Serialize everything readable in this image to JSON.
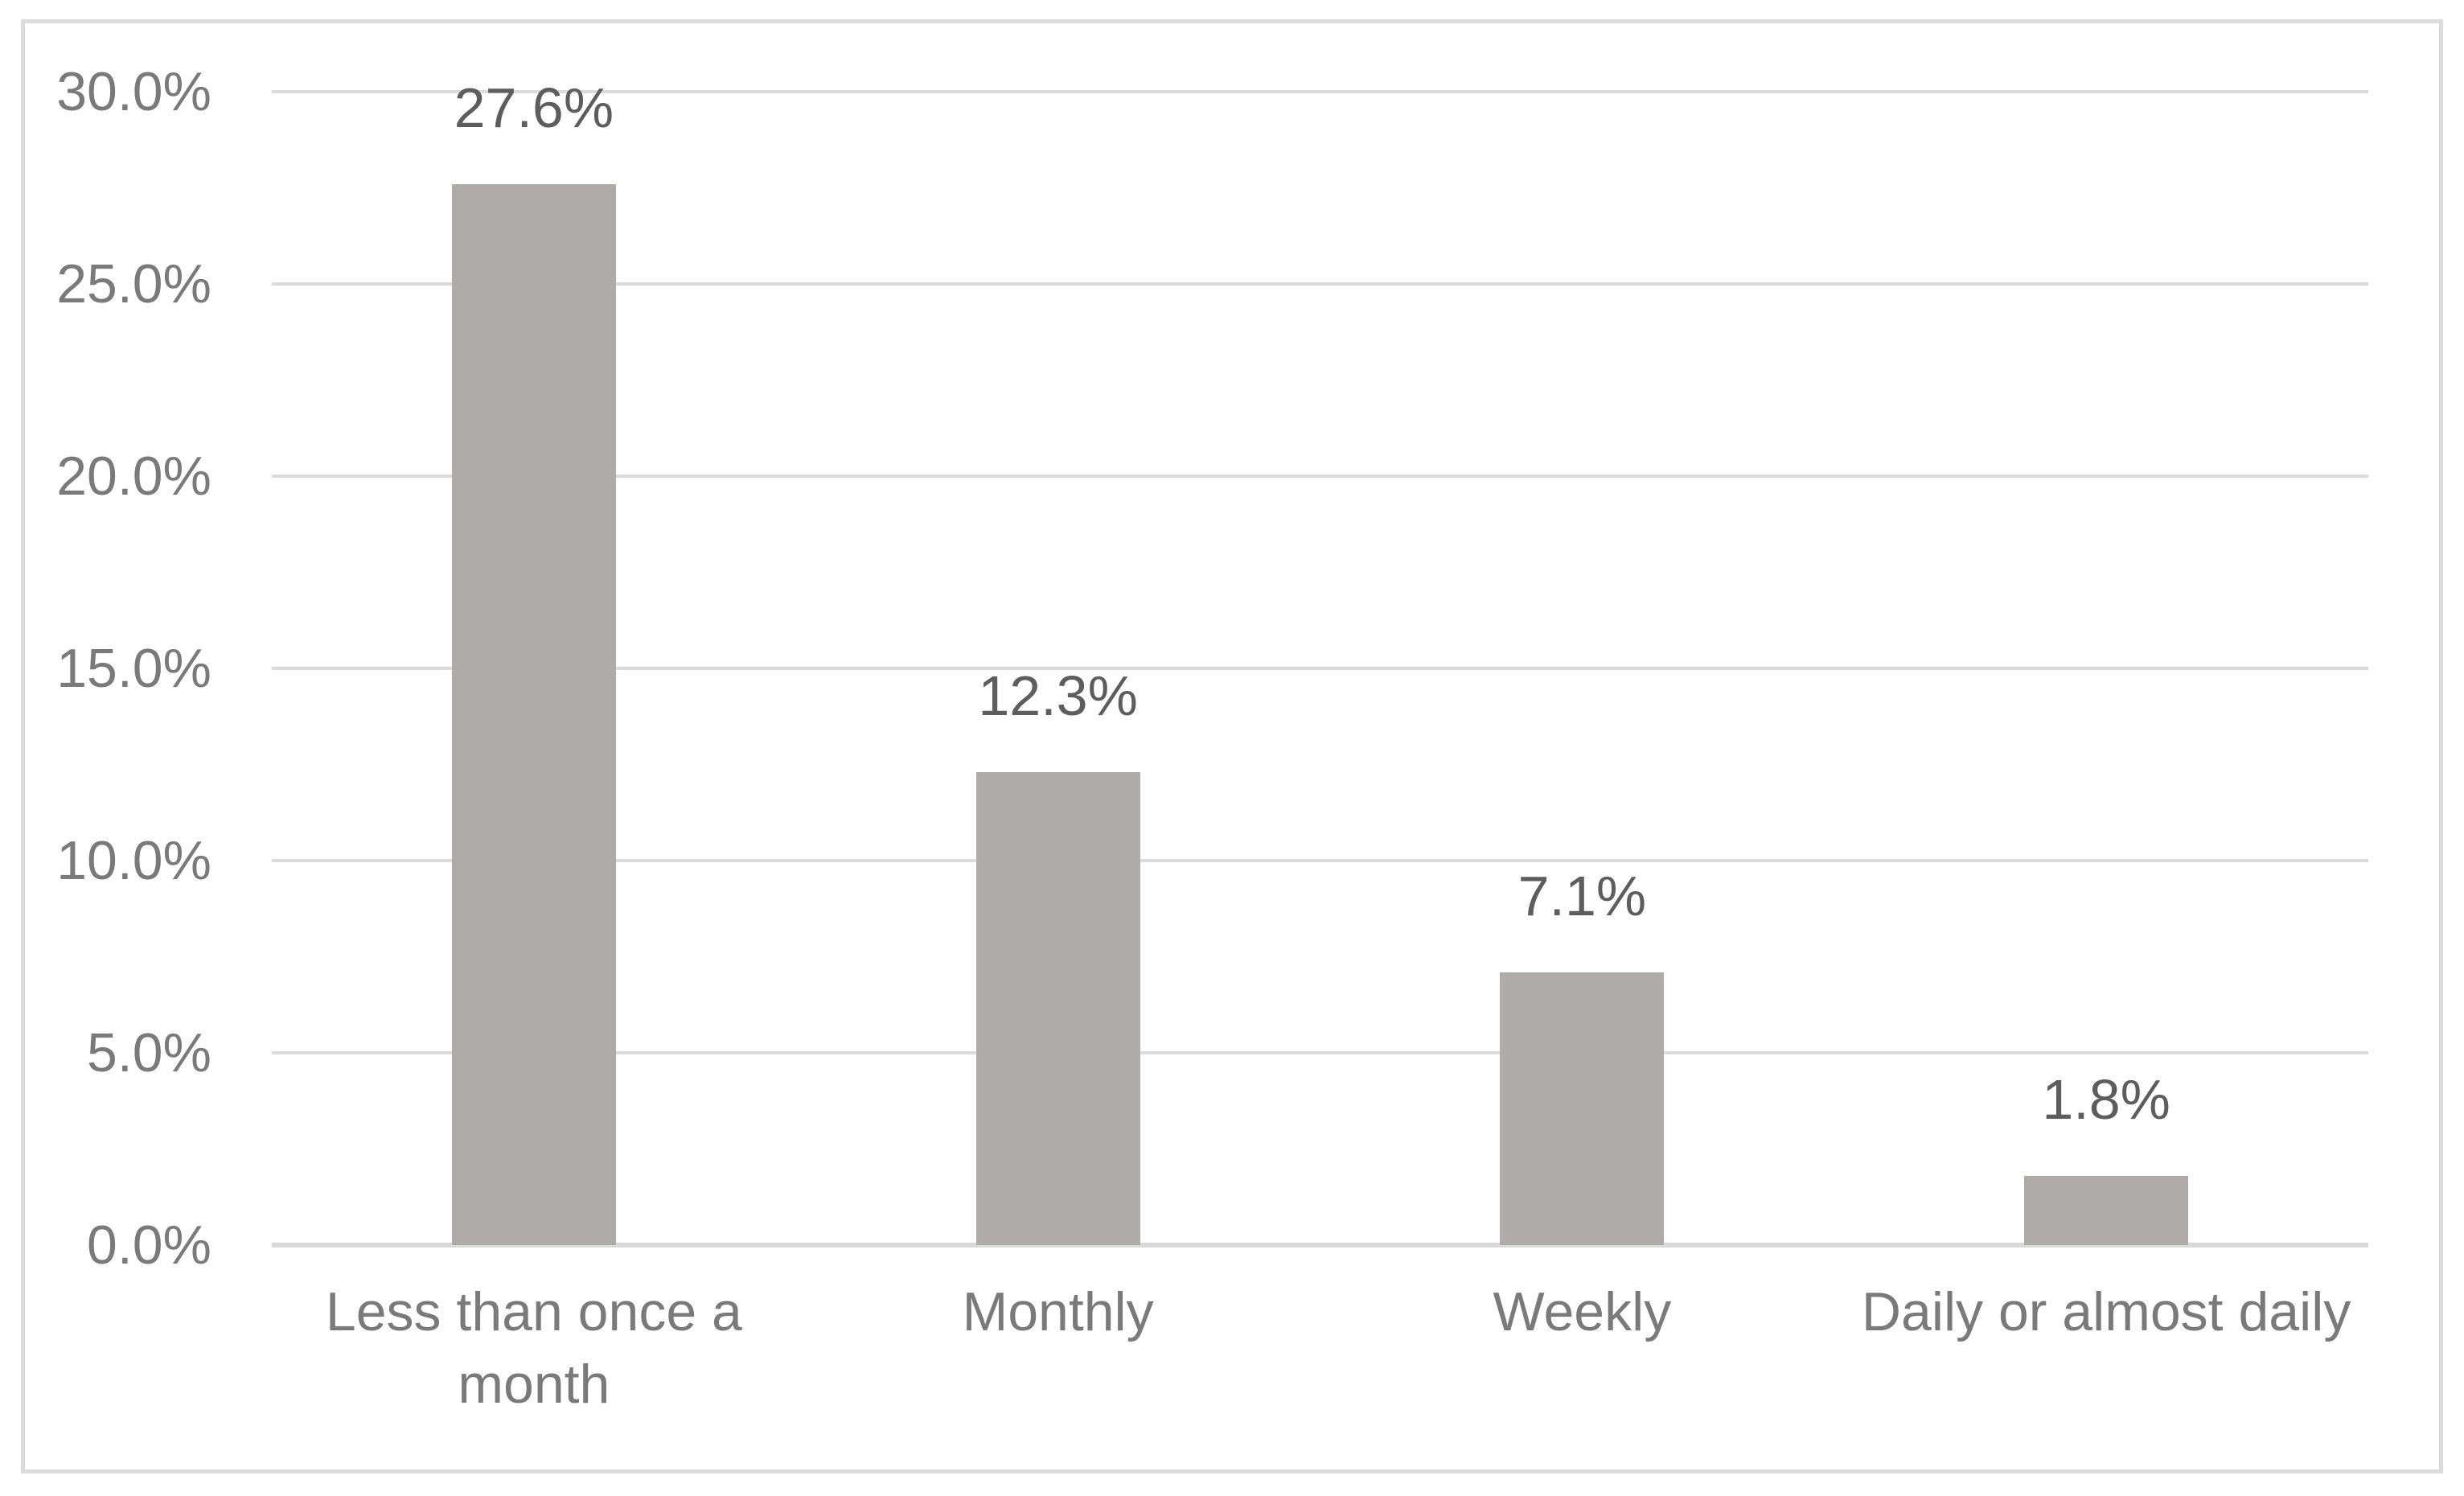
{
  "chart_data": {
    "type": "bar",
    "categories": [
      "Less than once a\nmonth",
      "Monthly",
      "Weekly",
      "Daily or almost daily"
    ],
    "values": [
      27.6,
      12.3,
      7.1,
      1.8
    ],
    "data_labels": [
      "27.6%",
      "12.3%",
      "7.1%",
      "1.8%"
    ],
    "yticks": [
      {
        "value": 30,
        "label": "30.0%"
      },
      {
        "value": 25,
        "label": "25.0%"
      },
      {
        "value": 20,
        "label": "20.0%"
      },
      {
        "value": 15,
        "label": "15.0%"
      },
      {
        "value": 10,
        "label": "10.0%"
      },
      {
        "value": 5,
        "label": "5.0%"
      },
      {
        "value": 0,
        "label": "0.0%"
      }
    ],
    "ylim": [
      0,
      30
    ],
    "grid": true,
    "legend": false,
    "title": "",
    "xlabel": "",
    "ylabel": "",
    "colors": {
      "bar": "#afabaa",
      "gridline": "#dbdbdb",
      "axis_line": "#d9d9d9",
      "frame_border": "#dbdbdb",
      "tick_text": "#7a7a7a",
      "category_text": "#7a7a7a",
      "data_label_text": "#5d5d5d",
      "background": "#ffffff"
    }
  }
}
